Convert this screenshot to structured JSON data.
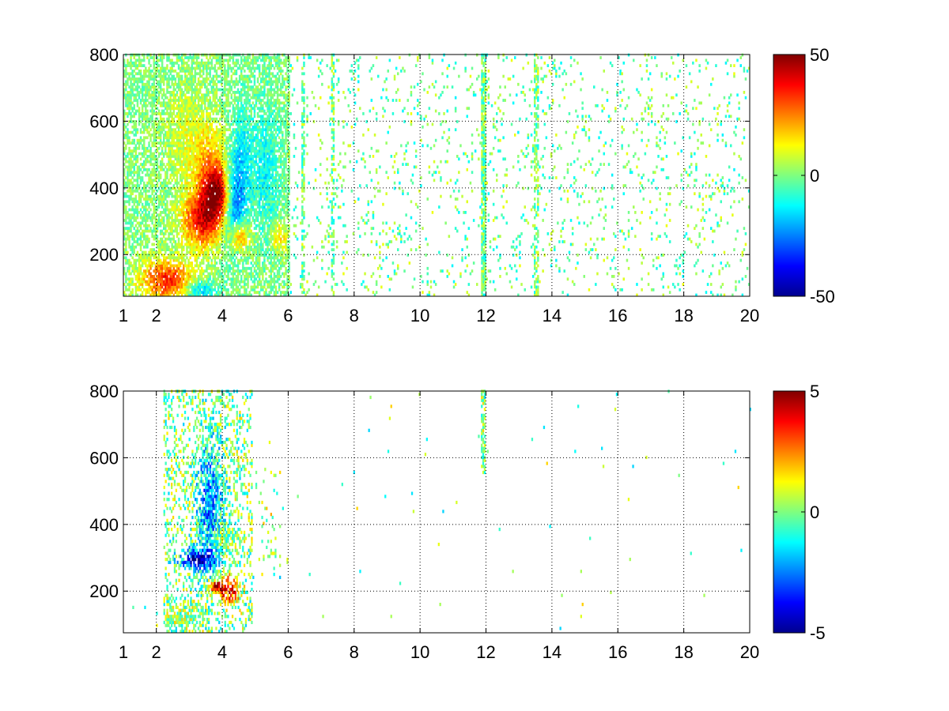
{
  "chart_data": [
    {
      "type": "heatmap",
      "title": "",
      "xlabel": "",
      "ylabel": "",
      "x_ticks": [
        "1",
        "2",
        "4",
        "6",
        "8",
        "10",
        "12",
        "14",
        "16",
        "18",
        "20"
      ],
      "x_tick_values": [
        1,
        2,
        4,
        6,
        8,
        10,
        12,
        14,
        16,
        18,
        20
      ],
      "y_ticks": [
        "200",
        "400",
        "600",
        "800"
      ],
      "y_tick_values": [
        200,
        400,
        600,
        800
      ],
      "xlim": [
        1,
        20
      ],
      "ylim": [
        75,
        800
      ],
      "grid": true,
      "colormap": "jet",
      "colorbar": {
        "ticks": [
          "50",
          "0",
          "-50"
        ],
        "tick_values": [
          50,
          0,
          -50
        ],
        "range": [
          -50,
          50
        ]
      },
      "hotspots": [
        {
          "x": 2.3,
          "y": 120,
          "w": 0.8,
          "h": 60,
          "v": 35
        },
        {
          "x": 3.3,
          "y": 300,
          "w": 0.6,
          "h": 80,
          "v": 30
        },
        {
          "x": 3.6,
          "y": 420,
          "w": 0.5,
          "h": 150,
          "v": 25
        },
        {
          "x": 3.9,
          "y": 380,
          "w": 0.4,
          "h": 80,
          "v": 35
        },
        {
          "x": 4.3,
          "y": 360,
          "w": 0.35,
          "h": 120,
          "v": -30
        },
        {
          "x": 4.5,
          "y": 250,
          "w": 0.3,
          "h": 40,
          "v": 25
        },
        {
          "x": 3.3,
          "y": 90,
          "w": 0.5,
          "h": 30,
          "v": -20
        },
        {
          "x": 4.6,
          "y": 500,
          "w": 0.3,
          "h": 150,
          "v": -12
        },
        {
          "x": 5.7,
          "y": 250,
          "w": 0.25,
          "h": 40,
          "v": 18
        },
        {
          "x": 2.8,
          "y": 550,
          "w": 0.6,
          "h": 150,
          "v": 8
        },
        {
          "x": 5.3,
          "y": 450,
          "w": 0.4,
          "h": 200,
          "v": -12
        }
      ]
    },
    {
      "type": "heatmap",
      "title": "",
      "xlabel": "",
      "ylabel": "",
      "x_ticks": [
        "1",
        "2",
        "4",
        "6",
        "8",
        "10",
        "12",
        "14",
        "16",
        "18",
        "20"
      ],
      "x_tick_values": [
        1,
        2,
        4,
        6,
        8,
        10,
        12,
        14,
        16,
        18,
        20
      ],
      "y_ticks": [
        "200",
        "400",
        "600",
        "800"
      ],
      "y_tick_values": [
        200,
        400,
        600,
        800
      ],
      "xlim": [
        1,
        20
      ],
      "ylim": [
        75,
        800
      ],
      "grid": true,
      "colormap": "jet",
      "colorbar": {
        "ticks": [
          "5",
          "0",
          "-5"
        ],
        "tick_values": [
          5,
          0,
          -5
        ],
        "range": [
          -5,
          5
        ]
      },
      "hotspots": [
        {
          "x": 2.6,
          "y": 120,
          "w": 0.7,
          "h": 40,
          "v": 0.3
        },
        {
          "x": 3.2,
          "y": 290,
          "w": 0.5,
          "h": 30,
          "v": -4
        },
        {
          "x": 3.6,
          "y": 450,
          "w": 0.4,
          "h": 200,
          "v": -2.5
        },
        {
          "x": 3.9,
          "y": 350,
          "w": 0.5,
          "h": 50,
          "v": 0.8
        },
        {
          "x": 4.2,
          "y": 200,
          "w": 0.3,
          "h": 40,
          "v": 4
        },
        {
          "x": 3.8,
          "y": 210,
          "w": 0.2,
          "h": 20,
          "v": 4.5
        },
        {
          "x": 5.4,
          "y": 470,
          "w": 0.3,
          "h": 100,
          "v": 0.6
        },
        {
          "x": 5.5,
          "y": 270,
          "w": 0.3,
          "h": 40,
          "v": -1
        }
      ]
    }
  ]
}
